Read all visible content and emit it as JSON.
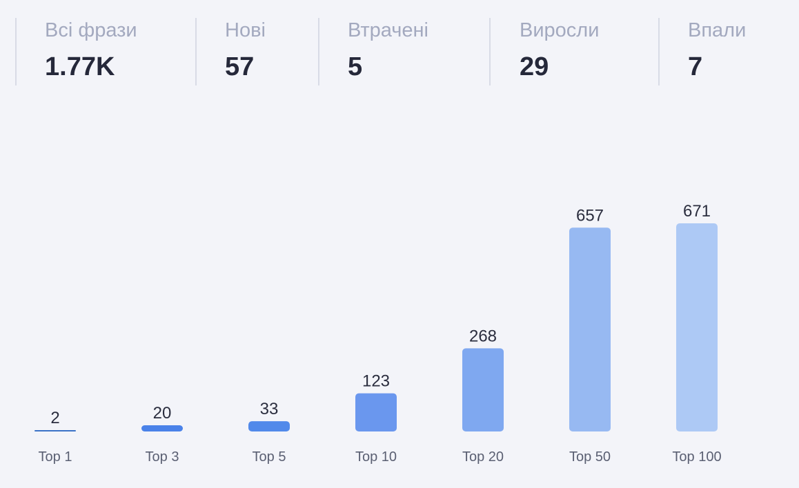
{
  "stats": [
    {
      "label": "Всі фрази",
      "value": "1.77K"
    },
    {
      "label": "Нові",
      "value": "57"
    },
    {
      "label": "Втрачені",
      "value": "5"
    },
    {
      "label": "Виросли",
      "value": "29"
    },
    {
      "label": "Впали",
      "value": "7"
    }
  ],
  "chart_data": {
    "type": "bar",
    "categories": [
      "Top 1",
      "Top 3",
      "Top 5",
      "Top 10",
      "Top 20",
      "Top 50",
      "Top 100"
    ],
    "values": [
      2,
      20,
      33,
      123,
      268,
      657,
      671
    ],
    "data_labels": [
      "2",
      "20",
      "33",
      "123",
      "268",
      "657",
      "671"
    ],
    "colors": [
      "#3a72c7",
      "#4a82e9",
      "#5189ea",
      "#6a97ee",
      "#7fa8f0",
      "#97b9f2",
      "#adc9f5"
    ],
    "title": "",
    "xlabel": "",
    "ylabel": "",
    "grid": false
  }
}
